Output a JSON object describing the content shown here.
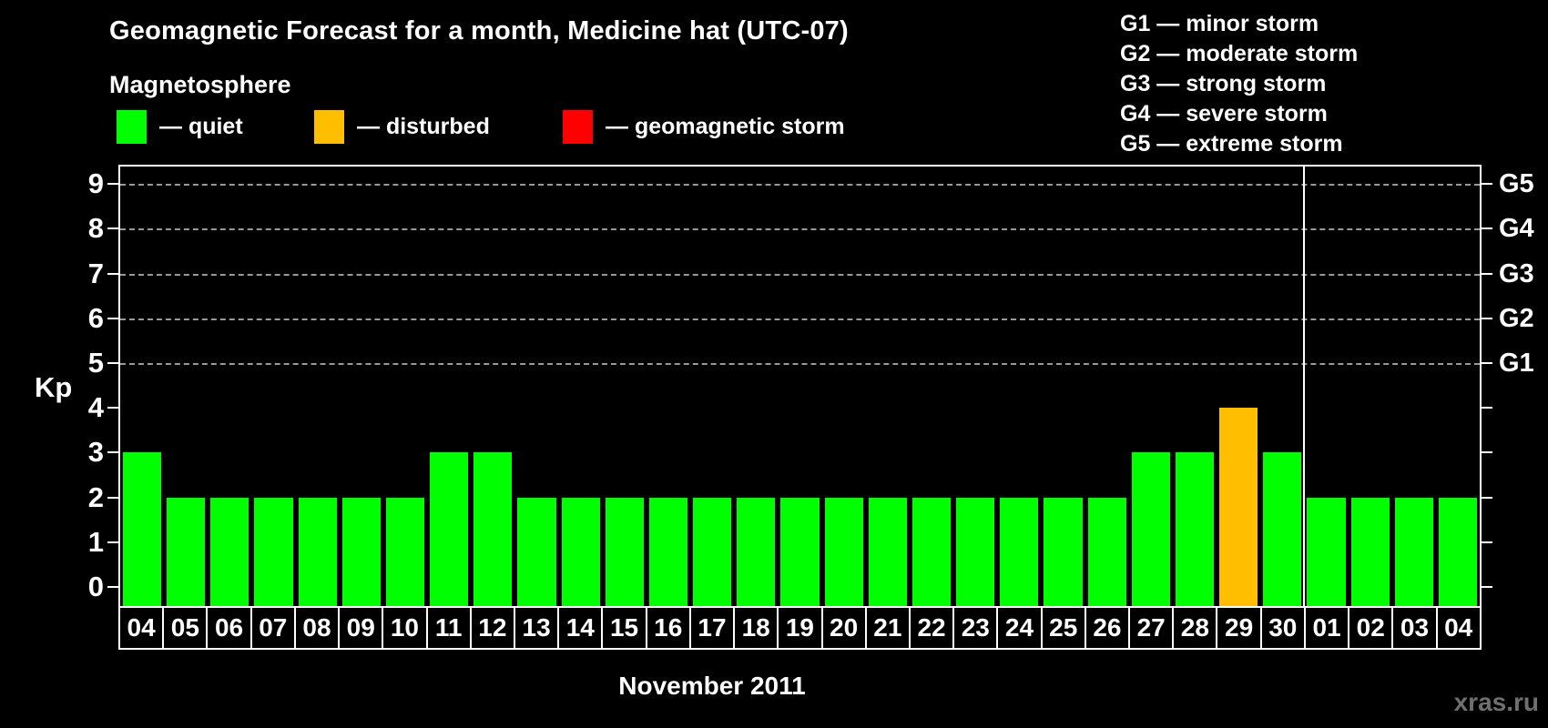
{
  "title": "Geomagnetic Forecast for a month, Medicine hat (UTC-07)",
  "legend": {
    "heading": "Magnetosphere",
    "items": [
      {
        "name": "quiet",
        "label": "— quiet",
        "color": "#00ff00"
      },
      {
        "name": "disturbed",
        "label": "— disturbed",
        "color": "#ffbe00"
      },
      {
        "name": "storm",
        "label": "— geomagnetic storm",
        "color": "#ff0000"
      }
    ]
  },
  "storm_scale_legend": {
    "items": [
      "G1 — minor storm",
      "G2 — moderate storm",
      "G3 — strong storm",
      "G4 — severe storm",
      "G5 — extreme storm"
    ]
  },
  "watermark": "xras.ru",
  "chart_data": {
    "type": "bar",
    "title": "Geomagnetic Forecast for a month, Medicine hat (UTC-07)",
    "xlabel": "November 2011",
    "ylabel": "Kp",
    "ylim": [
      0,
      9
    ],
    "yticks": [
      0,
      1,
      2,
      3,
      4,
      5,
      6,
      7,
      8,
      9
    ],
    "gridlines_at": [
      5,
      6,
      7,
      8,
      9
    ],
    "grid_style": "dashed",
    "right_axis": [
      {
        "label": "G1",
        "kp": 5
      },
      {
        "label": "G2",
        "kp": 6
      },
      {
        "label": "G3",
        "kp": 7
      },
      {
        "label": "G4",
        "kp": 8
      },
      {
        "label": "G5",
        "kp": 9
      }
    ],
    "categories": [
      "04",
      "05",
      "06",
      "07",
      "08",
      "09",
      "10",
      "11",
      "12",
      "13",
      "14",
      "15",
      "16",
      "17",
      "18",
      "19",
      "20",
      "21",
      "22",
      "23",
      "24",
      "25",
      "26",
      "27",
      "28",
      "29",
      "30",
      "01",
      "02",
      "03",
      "04"
    ],
    "values": [
      3,
      2,
      2,
      2,
      2,
      2,
      2,
      3,
      3,
      2,
      2,
      2,
      2,
      2,
      2,
      2,
      2,
      2,
      2,
      2,
      2,
      2,
      2,
      3,
      3,
      4,
      3,
      2,
      2,
      2,
      2
    ],
    "statuses": [
      "quiet",
      "quiet",
      "quiet",
      "quiet",
      "quiet",
      "quiet",
      "quiet",
      "quiet",
      "quiet",
      "quiet",
      "quiet",
      "quiet",
      "quiet",
      "quiet",
      "quiet",
      "quiet",
      "quiet",
      "quiet",
      "quiet",
      "quiet",
      "quiet",
      "quiet",
      "quiet",
      "quiet",
      "quiet",
      "disturbed",
      "quiet",
      "quiet",
      "quiet",
      "quiet",
      "quiet"
    ],
    "status_colors": {
      "quiet": "#00ff00",
      "disturbed": "#ffbe00",
      "storm": "#ff0000"
    },
    "month_separator_after_index": 26
  }
}
